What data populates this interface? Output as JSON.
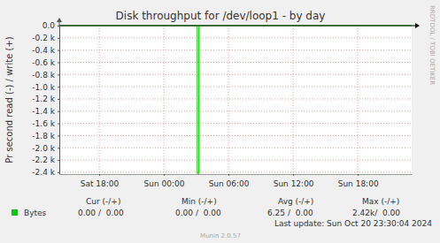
{
  "chart_data": {
    "type": "line",
    "title": "Disk throughput for /dev/loop1 - by day",
    "y_label": "Pr second read (-) / write (+)",
    "x": [
      14.3,
      27.1,
      27.1,
      27.25,
      27.25,
      47.0
    ],
    "series": [
      {
        "name": "Bytes",
        "color": "#00cc00",
        "values": [
          0,
          0,
          -2420,
          -2420,
          0,
          0
        ],
        "stats": [
          "0.00 /  0.00",
          "0.00 /  0.00",
          "6.25 /  0.00",
          "2.42k/  0.00"
        ]
      }
    ],
    "stats_headers": [
      "Cur (-/+)",
      "Min (-/+)",
      "Avg (-/+)",
      "Max (-/+)"
    ],
    "xlim": [
      14.3,
      47.0
    ],
    "xticks": [
      {
        "value": 18,
        "label": "Sat 18:00"
      },
      {
        "value": 24,
        "label": "Sun 00:00"
      },
      {
        "value": 30,
        "label": "Sun 06:00"
      },
      {
        "value": 36,
        "label": "Sun 12:00"
      },
      {
        "value": 42,
        "label": "Sun 18:00"
      }
    ],
    "ylim": [
      -2430,
      0
    ],
    "yticks": [
      {
        "value": 0,
        "label": "0.0"
      },
      {
        "value": -200,
        "label": "-0.2 k"
      },
      {
        "value": -400,
        "label": "-0.4 k"
      },
      {
        "value": -600,
        "label": "-0.6 k"
      },
      {
        "value": -800,
        "label": "-0.8 k"
      },
      {
        "value": -1000,
        "label": "-1.0 k"
      },
      {
        "value": -1200,
        "label": "-1.2 k"
      },
      {
        "value": -1400,
        "label": "-1.4 k"
      },
      {
        "value": -1600,
        "label": "-1.6 k"
      },
      {
        "value": -1800,
        "label": "-1.8 k"
      },
      {
        "value": -2000,
        "label": "-2.0 k"
      },
      {
        "value": -2200,
        "label": "-2.2 k"
      },
      {
        "value": -2400,
        "label": "-2.4 k"
      }
    ],
    "grid": true,
    "legend": "bottom",
    "annotations": [
      "RRDTOOL / TOBI OETIKER",
      "Last update: Sun Oct 20 23:30:04 2024",
      "Munin 2.0.57"
    ]
  }
}
